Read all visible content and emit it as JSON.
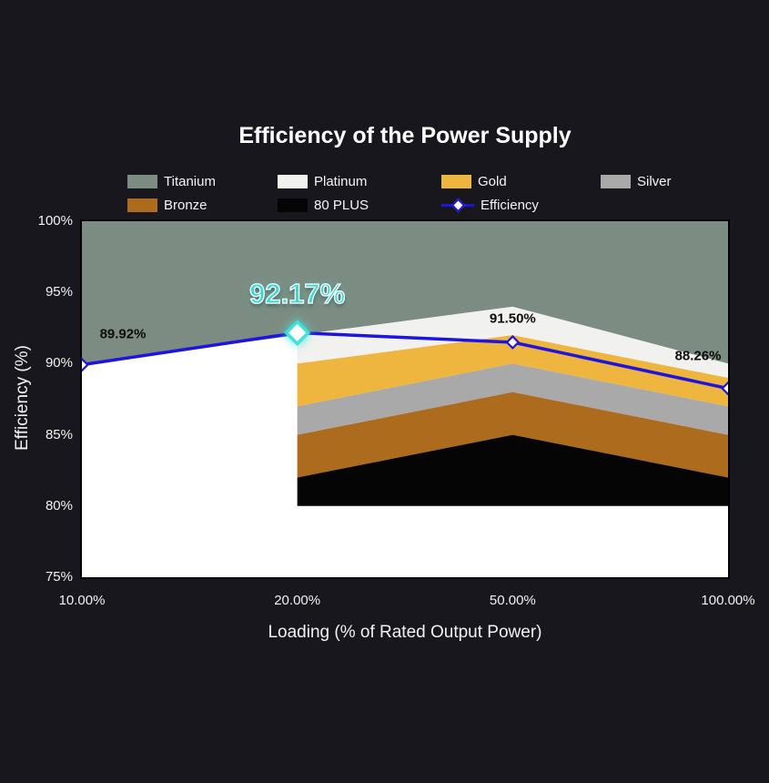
{
  "title": "Efficiency of the Power Supply",
  "colors": {
    "background": "#17171d",
    "plot_background": "#ffffff",
    "axis_text": "#f2f2f2",
    "line": "#1d14e0",
    "highlight": "#3fe0d8",
    "point_label": "#0c0c0c"
  },
  "legend": {
    "items": [
      {
        "label": "Titanium",
        "color": "#7d8c82",
        "swatch": "box"
      },
      {
        "label": "Platinum",
        "color": "#f1f1ef",
        "swatch": "box"
      },
      {
        "label": "Gold",
        "color": "#eeb63e",
        "swatch": "box"
      },
      {
        "label": "Silver",
        "color": "#a9a9a9",
        "swatch": "box"
      },
      {
        "label": "Bronze",
        "color": "#ad6b1d",
        "swatch": "box"
      },
      {
        "label": "80 PLUS",
        "color": "#050505",
        "swatch": "box"
      },
      {
        "label": "Efficiency",
        "color": "#1d14e0",
        "swatch": "line"
      }
    ]
  },
  "chart_data": {
    "type": "area",
    "title": "Efficiency of the Power Supply",
    "xlabel": "Loading (% of Rated Output Power)",
    "ylabel": "Efficiency (%)",
    "x_categories": [
      "10.00%",
      "20.00%",
      "50.00%",
      "100.00%"
    ],
    "x_values": [
      10,
      20,
      50,
      100
    ],
    "ylim": [
      75,
      100
    ],
    "ytick_labels": [
      "100%",
      "95%",
      "90%",
      "85%",
      "80%",
      "75%"
    ],
    "ytick_values": [
      100,
      95,
      90,
      85,
      80,
      75
    ],
    "grid": false,
    "legend_position": "top",
    "bands": [
      {
        "name": "Titanium",
        "color": "#7d8c82",
        "lower": [
          90,
          92,
          94,
          90
        ],
        "upper": [
          100,
          100,
          100,
          100
        ]
      },
      {
        "name": "Platinum",
        "color": "#f1f1ef",
        "lower": [
          null,
          90,
          92,
          89
        ],
        "upper": [
          null,
          92,
          94,
          90
        ]
      },
      {
        "name": "Gold",
        "color": "#eeb63e",
        "lower": [
          null,
          87,
          90,
          87
        ],
        "upper": [
          null,
          90,
          92,
          89
        ]
      },
      {
        "name": "Silver",
        "color": "#a9a9a9",
        "lower": [
          null,
          85,
          88,
          85
        ],
        "upper": [
          null,
          87,
          90,
          87
        ]
      },
      {
        "name": "Bronze",
        "color": "#ad6b1d",
        "lower": [
          null,
          82,
          85,
          82
        ],
        "upper": [
          null,
          85,
          88,
          85
        ]
      },
      {
        "name": "80 PLUS",
        "color": "#050505",
        "lower": [
          null,
          80,
          80,
          80
        ],
        "upper": [
          null,
          82,
          85,
          82
        ]
      }
    ],
    "series": [
      {
        "name": "Efficiency",
        "values": [
          89.92,
          92.17,
          91.5,
          88.26
        ],
        "point_labels": [
          "89.92%",
          "92.17%",
          "91.50%",
          "88.26%"
        ],
        "highlight_index": 1
      }
    ]
  }
}
